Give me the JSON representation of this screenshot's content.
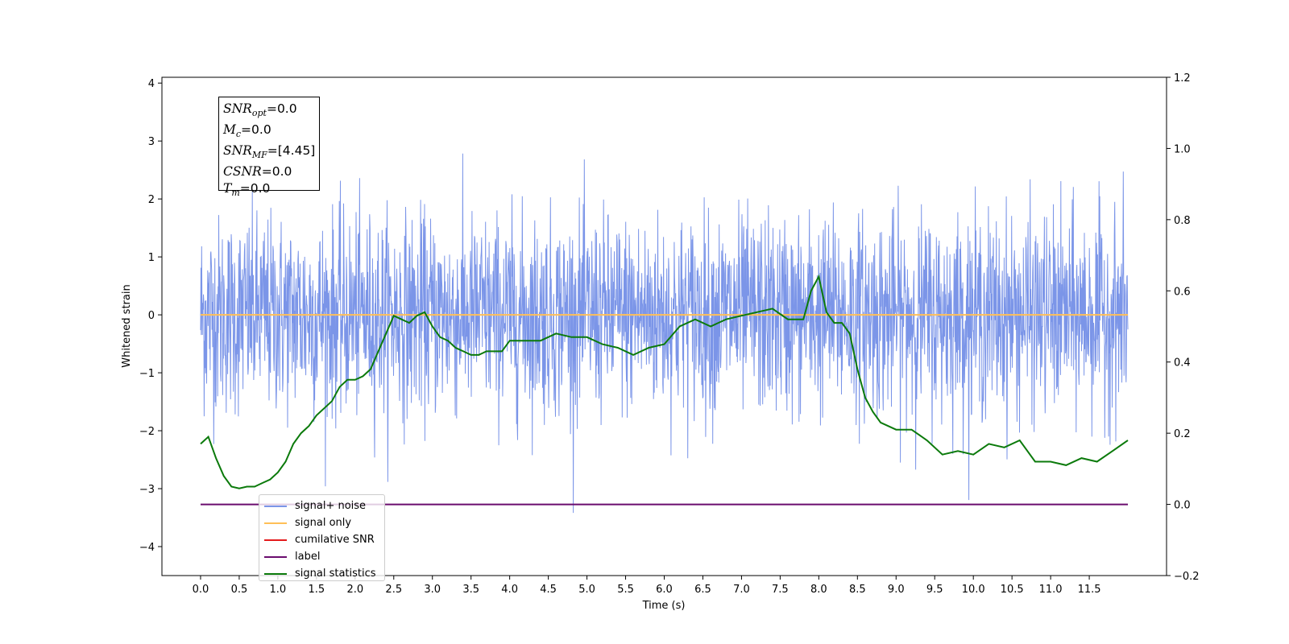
{
  "chart_data": {
    "type": "line",
    "xlabel": "Time (s)",
    "ylabel": "Whitened strain",
    "xlim": [
      -0.5,
      12.5
    ],
    "ylim": [
      -4.5,
      4.1
    ],
    "y2lim": [
      -0.2,
      1.2
    ],
    "x_ticks": [
      "0.0",
      "0.5",
      "1.0",
      "1.5",
      "2.0",
      "2.5",
      "3.0",
      "3.5",
      "4.0",
      "4.5",
      "5.0",
      "5.5",
      "6.0",
      "6.5",
      "7.0",
      "7.5",
      "8.0",
      "8.5",
      "9.0",
      "9.5",
      "10.0",
      "10.5",
      "11.0",
      "11.5"
    ],
    "y_ticks": [
      "4",
      "3",
      "2",
      "1",
      "0",
      "−1",
      "−2",
      "−3",
      "−4"
    ],
    "y2_ticks": [
      "1.2",
      "1.0",
      "0.8",
      "0.6",
      "0.4",
      "0.2",
      "0.0",
      "−0.2"
    ],
    "grid": false,
    "legend_position": "lower-left",
    "series": [
      {
        "name": "signal+ noise",
        "color": "#7b95e8",
        "axis": "left",
        "kind": "noise",
        "x_range": [
          0.0,
          12.0
        ],
        "std": 0.85
      },
      {
        "name": "signal only",
        "color": "#ffbf57",
        "axis": "left",
        "kind": "constant",
        "x_range": [
          0.0,
          12.0
        ],
        "value": 0.0
      },
      {
        "name": "cumilative SNR",
        "color": "#e41a1c",
        "axis": "right",
        "kind": "none"
      },
      {
        "name": "label",
        "color": "#6a0c6e",
        "axis": "right",
        "kind": "constant",
        "x_range": [
          0.0,
          12.0
        ],
        "value": 0.0
      },
      {
        "name": "signal statistics",
        "color": "#0b7a0b",
        "axis": "right",
        "x": [
          0.0,
          0.1,
          0.2,
          0.3,
          0.4,
          0.5,
          0.6,
          0.7,
          0.8,
          0.9,
          1.0,
          1.1,
          1.2,
          1.3,
          1.4,
          1.5,
          1.6,
          1.7,
          1.8,
          1.9,
          2.0,
          2.1,
          2.2,
          2.3,
          2.4,
          2.5,
          2.6,
          2.7,
          2.8,
          2.9,
          3.0,
          3.1,
          3.2,
          3.3,
          3.4,
          3.5,
          3.6,
          3.7,
          3.8,
          3.9,
          4.0,
          4.2,
          4.4,
          4.6,
          4.8,
          5.0,
          5.2,
          5.4,
          5.6,
          5.8,
          6.0,
          6.2,
          6.4,
          6.6,
          6.8,
          7.0,
          7.2,
          7.4,
          7.6,
          7.8,
          7.9,
          8.0,
          8.1,
          8.2,
          8.3,
          8.4,
          8.5,
          8.6,
          8.7,
          8.8,
          8.9,
          9.0,
          9.2,
          9.4,
          9.6,
          9.8,
          10.0,
          10.2,
          10.4,
          10.6,
          10.8,
          11.0,
          11.2,
          11.4,
          11.6,
          11.8,
          12.0
        ],
        "values": [
          0.17,
          0.19,
          0.13,
          0.08,
          0.05,
          0.045,
          0.05,
          0.05,
          0.06,
          0.07,
          0.09,
          0.12,
          0.17,
          0.2,
          0.22,
          0.25,
          0.27,
          0.29,
          0.33,
          0.35,
          0.35,
          0.36,
          0.38,
          0.43,
          0.48,
          0.53,
          0.52,
          0.51,
          0.53,
          0.54,
          0.5,
          0.47,
          0.46,
          0.44,
          0.43,
          0.42,
          0.42,
          0.43,
          0.43,
          0.43,
          0.46,
          0.46,
          0.46,
          0.48,
          0.47,
          0.47,
          0.45,
          0.44,
          0.42,
          0.44,
          0.45,
          0.5,
          0.52,
          0.5,
          0.52,
          0.53,
          0.54,
          0.55,
          0.52,
          0.52,
          0.6,
          0.64,
          0.54,
          0.51,
          0.51,
          0.48,
          0.38,
          0.3,
          0.26,
          0.23,
          0.22,
          0.21,
          0.21,
          0.18,
          0.14,
          0.15,
          0.14,
          0.17,
          0.16,
          0.18,
          0.12,
          0.12,
          0.11,
          0.13,
          0.12,
          0.15,
          0.18
        ]
      }
    ]
  },
  "stats_box": {
    "lines": [
      {
        "sym": "SNR",
        "sub": "opt",
        "val": "=0.0"
      },
      {
        "sym": "M",
        "sub": "c",
        "val": "=0.0"
      },
      {
        "sym": "SNR",
        "sub": "MF",
        "val": "=[4.45]"
      },
      {
        "sym": "CSNR",
        "sub": "",
        "val": "=0.0"
      },
      {
        "sym": "T",
        "sub": "m",
        "val": "=0.0"
      }
    ]
  }
}
